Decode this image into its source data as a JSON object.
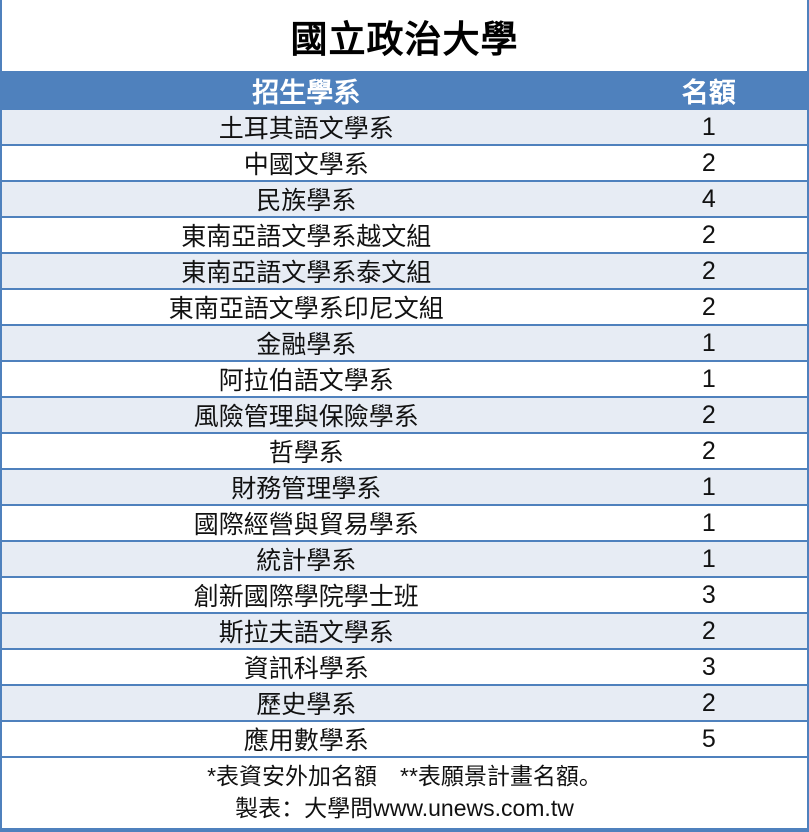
{
  "title": "國立政治大學",
  "chart_data": {
    "type": "table",
    "title": "國立政治大學",
    "columns": [
      "招生學系",
      "名額"
    ],
    "rows": [
      [
        "土耳其語文學系",
        1
      ],
      [
        "中國文學系",
        2
      ],
      [
        "民族學系",
        4
      ],
      [
        "東南亞語文學系越文組",
        2
      ],
      [
        "東南亞語文學系泰文組",
        2
      ],
      [
        "東南亞語文學系印尼文組",
        2
      ],
      [
        "金融學系",
        1
      ],
      [
        "阿拉伯語文學系",
        1
      ],
      [
        "風險管理與保險學系",
        2
      ],
      [
        "哲學系",
        2
      ],
      [
        "財務管理學系",
        1
      ],
      [
        "國際經營與貿易學系",
        1
      ],
      [
        "統計學系",
        1
      ],
      [
        "創新國際學院學士班",
        3
      ],
      [
        "斯拉夫語文學系",
        2
      ],
      [
        "資訊科學系",
        3
      ],
      [
        "歷史學系",
        2
      ],
      [
        "應用數學系",
        5
      ]
    ],
    "notes": [
      "*表資安外加名額　**表願景計畫名額。",
      "製表：大學問www.unews.com.tw"
    ],
    "layout": {
      "striped": true,
      "header_bg": "#4f81bd",
      "header_text": "#ffffff",
      "stripe_bg": "#e7ecf4",
      "border_color": "#4f81bd"
    }
  }
}
